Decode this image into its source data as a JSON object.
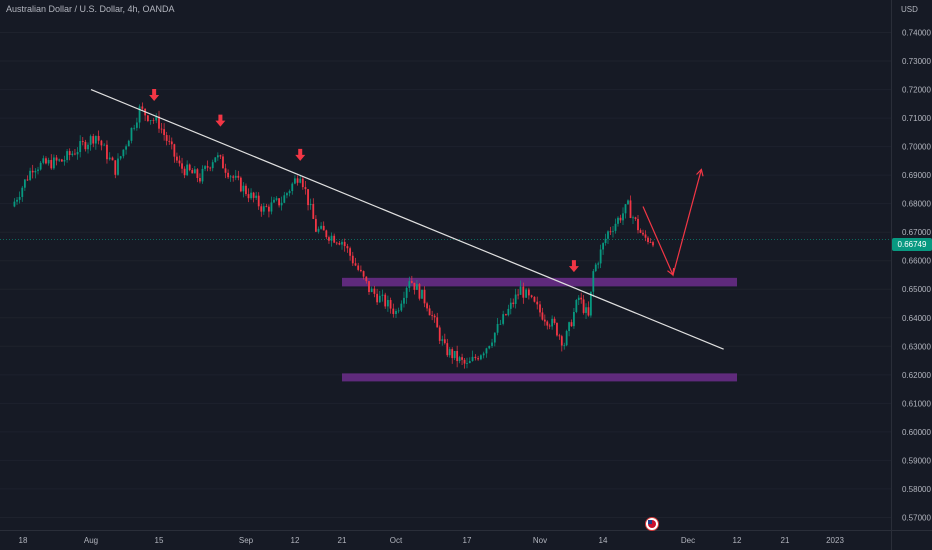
{
  "header": {
    "title": "Australian Dollar / U.S. Dollar, 4h, OANDA",
    "currency": "USD"
  },
  "price_label": "0.66749",
  "colors": {
    "background": "#161a25",
    "bull": "#089981",
    "bear": "#f23645",
    "zone": "#6c2e8c",
    "trendline": "#e0e0e0",
    "arrow": "#f23645"
  },
  "icons": {
    "event_marker": "us-flag-icon",
    "arrow_marker": "down-arrow-icon"
  },
  "chart_data": {
    "type": "candlestick",
    "title": "Australian Dollar / U.S. Dollar, 4h, OANDA",
    "ylabel": "USD",
    "ylim": [
      0.5656,
      0.7514
    ],
    "y_ticks": [
      "0.74000",
      "0.73000",
      "0.72000",
      "0.71000",
      "0.70000",
      "0.69000",
      "0.68000",
      "0.67000",
      "0.66000",
      "0.65000",
      "0.64000",
      "0.63000",
      "0.62000",
      "0.61000",
      "0.60000",
      "0.59000",
      "0.58000",
      "0.57000"
    ],
    "x_ticks": [
      "18",
      "Aug",
      "15",
      "Sep",
      "12",
      "21",
      "Oct",
      "17",
      "Nov",
      "14",
      "Dec",
      "12",
      "21",
      "2023"
    ],
    "x_tick_dates": [
      "2022-07-18",
      "2022-08-01",
      "2022-08-15",
      "2022-09-01",
      "2022-09-12",
      "2022-09-21",
      "2022-10-01",
      "2022-10-17",
      "2022-11-01",
      "2022-11-14",
      "2022-12-01",
      "2022-12-12",
      "2022-12-21",
      "2023-01-01"
    ],
    "last_price": 0.66749,
    "price_path": [
      [
        "2022-07-14",
        0.679
      ],
      [
        "2022-07-20",
        0.693
      ],
      [
        "2022-07-26",
        0.695
      ],
      [
        "2022-08-02",
        0.704
      ],
      [
        "2022-08-06",
        0.692
      ],
      [
        "2022-08-11",
        0.713
      ],
      [
        "2022-08-15",
        0.708
      ],
      [
        "2022-08-19",
        0.693
      ],
      [
        "2022-08-23",
        0.689
      ],
      [
        "2022-08-26",
        0.697
      ],
      [
        "2022-08-30",
        0.688
      ],
      [
        "2022-09-05",
        0.678
      ],
      [
        "2022-09-09",
        0.681
      ],
      [
        "2022-09-13",
        0.691
      ],
      [
        "2022-09-16",
        0.671
      ],
      [
        "2022-09-21",
        0.667
      ],
      [
        "2022-09-26",
        0.65
      ],
      [
        "2022-10-01",
        0.642
      ],
      [
        "2022-10-04",
        0.654
      ],
      [
        "2022-10-08",
        0.645
      ],
      [
        "2022-10-12",
        0.629
      ],
      [
        "2022-10-17",
        0.623
      ],
      [
        "2022-10-21",
        0.63
      ],
      [
        "2022-10-25",
        0.641
      ],
      [
        "2022-10-28",
        0.65
      ],
      [
        "2022-11-01",
        0.642
      ],
      [
        "2022-11-04",
        0.637
      ],
      [
        "2022-11-06",
        0.631
      ],
      [
        "2022-11-09",
        0.647
      ],
      [
        "2022-11-11",
        0.64
      ],
      [
        "2022-11-12",
        0.656
      ],
      [
        "2022-11-15",
        0.67
      ],
      [
        "2022-11-19",
        0.679
      ],
      [
        "2022-11-22",
        0.668
      ],
      [
        "2022-11-24",
        0.6675
      ]
    ],
    "trendline": {
      "from": [
        "2022-08-01",
        0.72
      ],
      "to": [
        "2022-12-09",
        0.629
      ]
    },
    "zones": [
      {
        "from": "2022-09-21",
        "to": "2022-12-12",
        "low": 0.651,
        "high": 0.654
      },
      {
        "from": "2022-09-21",
        "to": "2022-12-12",
        "low": 0.618,
        "high": 0.6205
      }
    ],
    "arrow_markers": [
      {
        "date": "2022-08-14",
        "price": 0.716
      },
      {
        "date": "2022-08-27",
        "price": 0.707
      },
      {
        "date": "2022-09-13",
        "price": 0.695
      },
      {
        "date": "2022-11-08",
        "price": 0.656
      }
    ],
    "projection": [
      [
        "2022-11-22",
        0.679
      ],
      [
        "2022-11-28",
        0.655
      ],
      [
        "2022-12-04",
        0.692
      ]
    ]
  }
}
